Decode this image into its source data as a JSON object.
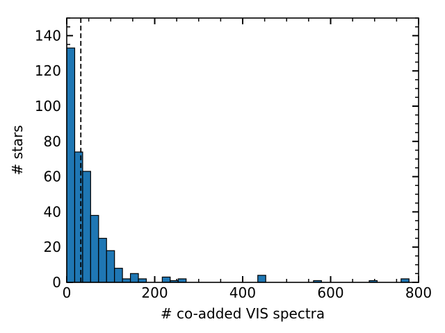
{
  "chart_data": {
    "type": "bar",
    "title": "",
    "xlabel": "# co-added VIS spectra",
    "ylabel": "# stars",
    "xlim": [
      0,
      800
    ],
    "ylim": [
      0,
      150
    ],
    "xticks": [
      0,
      200,
      400,
      600,
      800
    ],
    "yticks": [
      0,
      20,
      40,
      60,
      80,
      100,
      120,
      140
    ],
    "bin_width": 18.1,
    "bins": [
      {
        "x0": 0.0,
        "count": 133
      },
      {
        "x0": 18.1,
        "count": 74
      },
      {
        "x0": 36.2,
        "count": 63
      },
      {
        "x0": 54.3,
        "count": 38
      },
      {
        "x0": 72.4,
        "count": 25
      },
      {
        "x0": 90.5,
        "count": 18
      },
      {
        "x0": 108.6,
        "count": 8
      },
      {
        "x0": 126.7,
        "count": 2
      },
      {
        "x0": 144.8,
        "count": 5
      },
      {
        "x0": 162.9,
        "count": 2
      },
      {
        "x0": 217.2,
        "count": 3
      },
      {
        "x0": 235.3,
        "count": 1
      },
      {
        "x0": 253.4,
        "count": 2
      },
      {
        "x0": 434.4,
        "count": 4
      },
      {
        "x0": 561.1,
        "count": 1
      },
      {
        "x0": 687.8,
        "count": 1
      },
      {
        "x0": 760.2,
        "count": 2
      }
    ],
    "reference_line_x": 32,
    "bar_color": "#1f77b4",
    "edge_color": "#000000"
  }
}
